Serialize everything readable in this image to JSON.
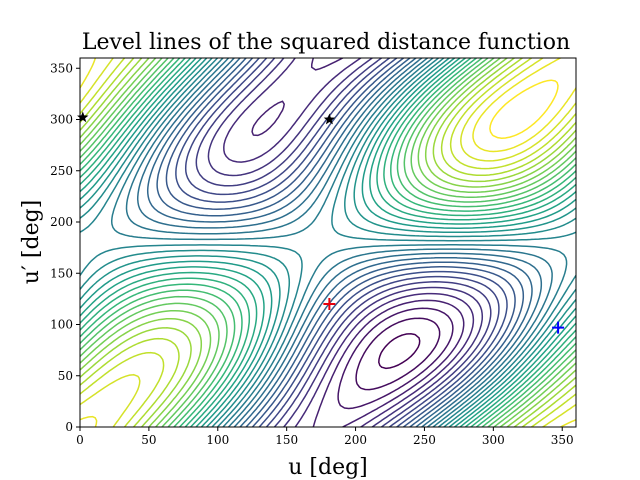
{
  "chart_data": {
    "type": "contour",
    "title": "Level lines of the squared distance function",
    "xlabel": "u [deg]",
    "ylabel": "u′ [deg]",
    "xlim": [
      0,
      360
    ],
    "ylim": [
      0,
      360
    ],
    "xticks": [
      0,
      50,
      100,
      150,
      200,
      250,
      300,
      350
    ],
    "yticks": [
      0,
      50,
      100,
      150,
      200,
      250,
      300,
      350
    ],
    "colormap": "viridis",
    "grid": false,
    "contour_count": 34,
    "markers": [
      {
        "shape": "star",
        "color": "#000000",
        "x": 2,
        "y": 302
      },
      {
        "shape": "star",
        "color": "#000000",
        "x": 181,
        "y": 300
      },
      {
        "shape": "plus",
        "color": "#e8000b",
        "x": 181,
        "y": 120
      },
      {
        "shape": "plus",
        "color": "#0000ff",
        "x": 347,
        "y": 97
      }
    ]
  }
}
